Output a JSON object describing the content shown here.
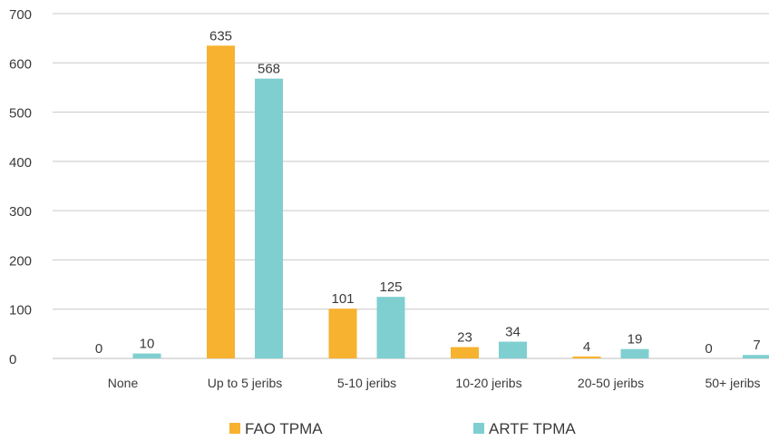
{
  "chart_data": {
    "type": "bar",
    "title": "",
    "xlabel": "",
    "ylabel": "",
    "categories": [
      "None",
      "Up to 5 jeribs",
      "5-10 jeribs",
      "10-20 jeribs",
      "20-50 jeribs",
      "50+ jeribs"
    ],
    "series": [
      {
        "name": "FAO TPMA",
        "color": "#f7b230",
        "values": [
          0,
          635,
          101,
          23,
          4,
          0
        ]
      },
      {
        "name": "ARTF TPMA",
        "color": "#7fcfd0",
        "values": [
          10,
          568,
          125,
          34,
          19,
          7
        ]
      }
    ],
    "ylim": [
      0,
      700
    ],
    "yticks": [
      0,
      100,
      200,
      300,
      400,
      500,
      600,
      700
    ],
    "grid": true,
    "legend": "bottom",
    "data_labels": true
  }
}
